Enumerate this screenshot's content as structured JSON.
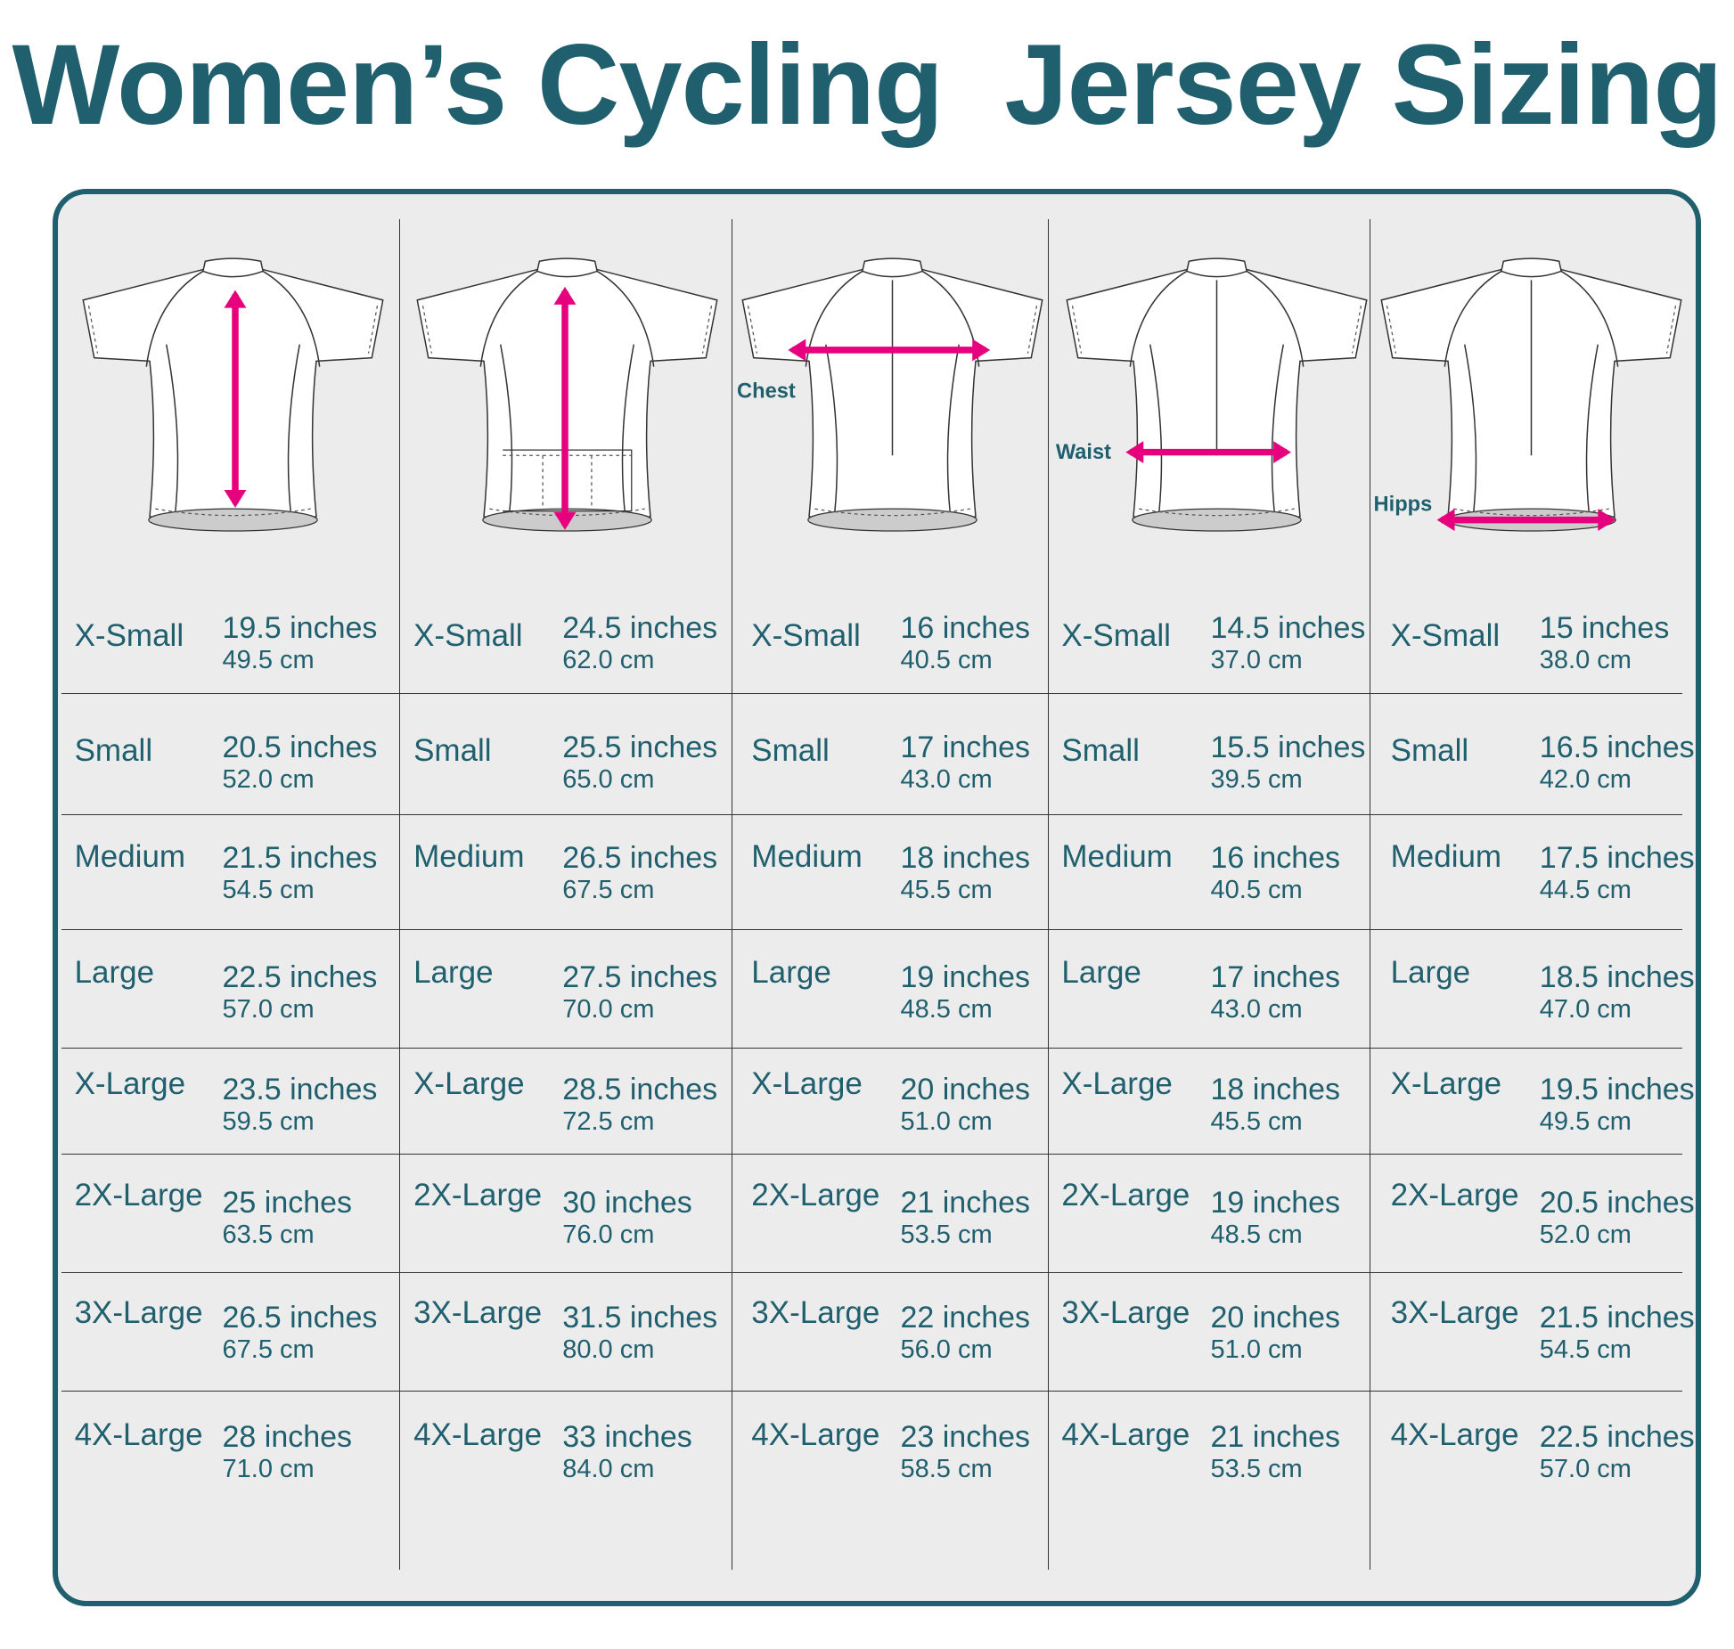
{
  "title": "Women’s Cycling  Jersey Sizing",
  "accent_color": "#1f5f6e",
  "arrow_color": "#e6007e",
  "columns": [
    {
      "view": "front",
      "measure_label": "",
      "rows": [
        {
          "size": "X-Small",
          "inches": "19.5 inches",
          "cm": "49.5 cm"
        },
        {
          "size": "Small",
          "inches": "20.5 inches",
          "cm": "52.0 cm"
        },
        {
          "size": "Medium",
          "inches": "21.5 inches",
          "cm": "54.5 cm"
        },
        {
          "size": "Large",
          "inches": "22.5 inches",
          "cm": "57.0 cm"
        },
        {
          "size": "X-Large",
          "inches": "23.5 inches",
          "cm": "59.5 cm"
        },
        {
          "size": "2X-Large",
          "inches": "25 inches",
          "cm": "63.5 cm"
        },
        {
          "size": "3X-Large",
          "inches": "26.5 inches",
          "cm": "67.5 cm"
        },
        {
          "size": "4X-Large",
          "inches": "28 inches",
          "cm": "71.0 cm"
        }
      ]
    },
    {
      "view": "back",
      "measure_label": "",
      "rows": [
        {
          "size": "X-Small",
          "inches": "24.5 inches",
          "cm": "62.0 cm"
        },
        {
          "size": "Small",
          "inches": "25.5 inches",
          "cm": "65.0 cm"
        },
        {
          "size": "Medium",
          "inches": "26.5 inches",
          "cm": "67.5 cm"
        },
        {
          "size": "Large",
          "inches": "27.5 inches",
          "cm": "70.0 cm"
        },
        {
          "size": "X-Large",
          "inches": "28.5 inches",
          "cm": "72.5 cm"
        },
        {
          "size": "2X-Large",
          "inches": "30 inches",
          "cm": "76.0 cm"
        },
        {
          "size": "3X-Large",
          "inches": "31.5 inches",
          "cm": "80.0 cm"
        },
        {
          "size": "4X-Large",
          "inches": "33 inches",
          "cm": "84.0 cm"
        }
      ]
    },
    {
      "view": "front-zip",
      "measure_label": "Chest",
      "rows": [
        {
          "size": "X-Small",
          "inches": "16 inches",
          "cm": "40.5 cm"
        },
        {
          "size": "Small",
          "inches": "17 inches",
          "cm": "43.0 cm"
        },
        {
          "size": "Medium",
          "inches": "18 inches",
          "cm": "45.5 cm"
        },
        {
          "size": "Large",
          "inches": "19 inches",
          "cm": "48.5 cm"
        },
        {
          "size": "X-Large",
          "inches": "20 inches",
          "cm": "51.0 cm"
        },
        {
          "size": "2X-Large",
          "inches": "21 inches",
          "cm": "53.5 cm"
        },
        {
          "size": "3X-Large",
          "inches": "22 inches",
          "cm": "56.0 cm"
        },
        {
          "size": "4X-Large",
          "inches": "23 inches",
          "cm": "58.5 cm"
        }
      ]
    },
    {
      "view": "front-zip",
      "measure_label": "Waist",
      "rows": [
        {
          "size": "X-Small",
          "inches": "14.5 inches",
          "cm": "37.0 cm"
        },
        {
          "size": "Small",
          "inches": "15.5 inches",
          "cm": "39.5 cm"
        },
        {
          "size": "Medium",
          "inches": "16 inches",
          "cm": "40.5 cm"
        },
        {
          "size": "Large",
          "inches": "17 inches",
          "cm": "43.0 cm"
        },
        {
          "size": "X-Large",
          "inches": "18 inches",
          "cm": "45.5 cm"
        },
        {
          "size": "2X-Large",
          "inches": "19 inches",
          "cm": "48.5 cm"
        },
        {
          "size": "3X-Large",
          "inches": "20 inches",
          "cm": "51.0 cm"
        },
        {
          "size": "4X-Large",
          "inches": "21 inches",
          "cm": "53.5 cm"
        }
      ]
    },
    {
      "view": "front-zip",
      "measure_label": "Hipps",
      "rows": [
        {
          "size": "X-Small",
          "inches": "15 inches",
          "cm": "38.0 cm"
        },
        {
          "size": "Small",
          "inches": "16.5 inches",
          "cm": "42.0 cm"
        },
        {
          "size": "Medium",
          "inches": "17.5 inches",
          "cm": "44.5 cm"
        },
        {
          "size": "Large",
          "inches": "18.5 inches",
          "cm": "47.0 cm"
        },
        {
          "size": "X-Large",
          "inches": "19.5 inches",
          "cm": "49.5 cm"
        },
        {
          "size": "2X-Large",
          "inches": "20.5 inches",
          "cm": "52.0 cm"
        },
        {
          "size": "3X-Large",
          "inches": "21.5 inches",
          "cm": "54.5 cm"
        },
        {
          "size": "4X-Large",
          "inches": "22.5 inches",
          "cm": "57.0 cm"
        }
      ]
    }
  ]
}
